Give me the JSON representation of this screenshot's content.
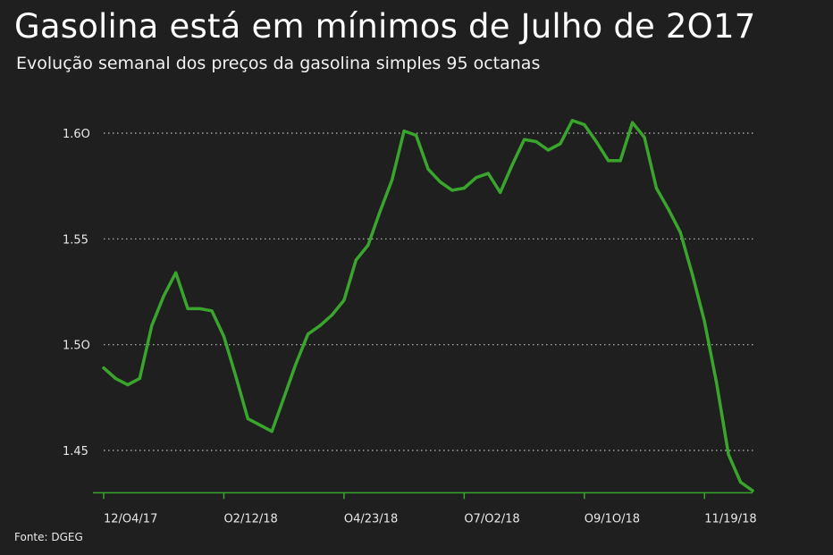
{
  "title": "Gasolina está em mínimos de Julho de 2O17",
  "subtitle": "Evolução semanal dos preços da gasolina simples 95 octanas",
  "source": "Fonte: DGEG",
  "colors": {
    "background": "#1f1f1f",
    "line": "#3aa52c",
    "grid": "#bdbdbd",
    "text": "#ffffff"
  },
  "chart_data": {
    "type": "line",
    "title": "Gasolina está em mínimos de Julho de 2O17",
    "subtitle": "Evolução semanal dos preços da gasolina simples 95 octanas",
    "xlabel": "",
    "ylabel": "",
    "ylim": [
      1.43,
      1.63
    ],
    "yticks": [
      1.45,
      1.5,
      1.55,
      1.6
    ],
    "ytick_labels": [
      "1.45",
      "1.5O",
      "1.55",
      "1.6O"
    ],
    "grid": "horizontal-dotted",
    "xtick_labels": [
      "12/O4/17",
      "O2/12/18",
      "O4/23/18",
      "O7/O2/18",
      "O9/1O/18",
      "11/19/18"
    ],
    "xtick_index": [
      0,
      10,
      20,
      30,
      40,
      50
    ],
    "series": [
      {
        "name": "Gasolina simples 95",
        "values": [
          1.489,
          1.484,
          1.481,
          1.484,
          1.509,
          1.523,
          1.534,
          1.517,
          1.517,
          1.516,
          1.504,
          1.485,
          1.465,
          1.462,
          1.459,
          1.475,
          1.491,
          1.505,
          1.509,
          1.514,
          1.521,
          1.54,
          1.547,
          1.563,
          1.578,
          1.601,
          1.599,
          1.583,
          1.577,
          1.573,
          1.574,
          1.579,
          1.581,
          1.572,
          1.585,
          1.597,
          1.596,
          1.592,
          1.595,
          1.606,
          1.604,
          1.596,
          1.587,
          1.587,
          1.605,
          1.598,
          1.574,
          1.564,
          1.553,
          1.533,
          1.511,
          1.482,
          1.448,
          1.435,
          1.431
        ]
      }
    ]
  }
}
